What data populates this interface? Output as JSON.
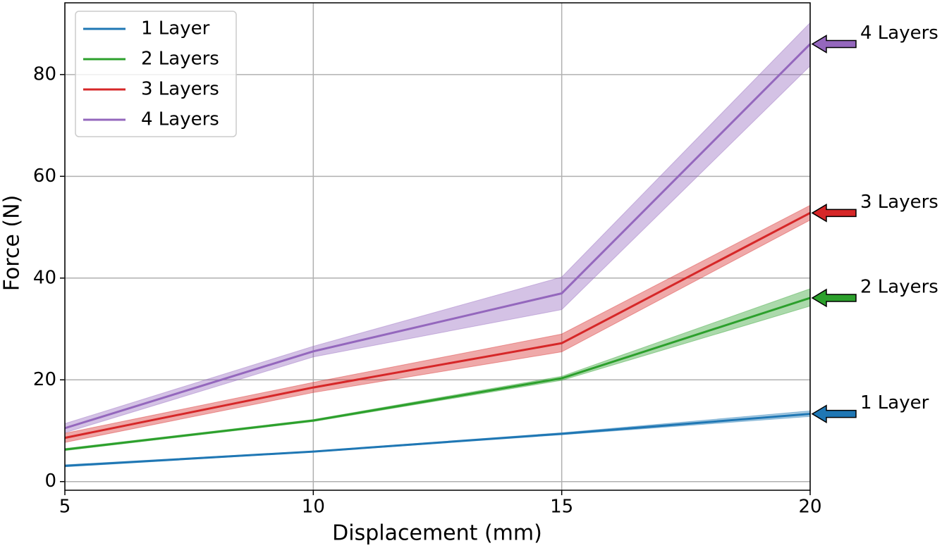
{
  "chart_data": {
    "type": "line",
    "xlabel": "Displacement (mm)",
    "ylabel": "Force (N)",
    "x": [
      5,
      10,
      15,
      20
    ],
    "series": [
      {
        "name": "1 Layer",
        "color": "#1f77b4",
        "values": [
          3.1,
          5.9,
          9.4,
          13.3
        ],
        "lower": [
          2.9,
          5.8,
          9.2,
          12.8
        ],
        "upper": [
          3.3,
          6.0,
          9.6,
          13.9
        ]
      },
      {
        "name": "2 Layers",
        "color": "#2ca02c",
        "values": [
          6.3,
          12.0,
          20.3,
          36.1
        ],
        "lower": [
          6.1,
          11.8,
          19.9,
          34.5
        ],
        "upper": [
          6.5,
          12.2,
          20.7,
          37.9
        ]
      },
      {
        "name": "3 Layers",
        "color": "#d62728",
        "values": [
          8.6,
          18.5,
          27.2,
          52.8
        ],
        "lower": [
          7.7,
          17.5,
          25.5,
          51.4
        ],
        "upper": [
          9.5,
          19.5,
          29.0,
          54.3
        ]
      },
      {
        "name": "4 Layers",
        "color": "#9467bd",
        "values": [
          10.5,
          25.6,
          37.0,
          86.0
        ],
        "lower": [
          9.6,
          24.5,
          33.8,
          81.7
        ],
        "upper": [
          11.4,
          26.6,
          40.2,
          90.2
        ]
      }
    ],
    "annotations": [
      {
        "text": "4 Layers",
        "xy": [
          20,
          86.0
        ]
      },
      {
        "text": "3 Layers",
        "xy": [
          20,
          52.8
        ]
      },
      {
        "text": "2 Layers",
        "xy": [
          20,
          36.1
        ]
      },
      {
        "text": "1 Layer",
        "xy": [
          20,
          13.3
        ]
      }
    ],
    "xlim": [
      5,
      20
    ],
    "xticks": [
      5,
      10,
      15,
      20
    ],
    "ylim": [
      -1.7,
      94.1
    ],
    "yticks": [
      0,
      20,
      40,
      60,
      80
    ],
    "grid": true,
    "legend": "upper left"
  }
}
